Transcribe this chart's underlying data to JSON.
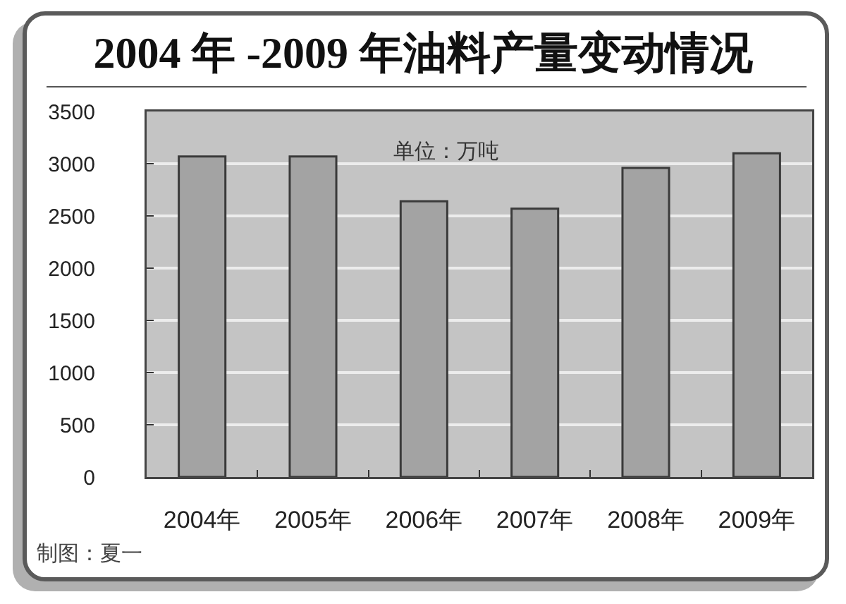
{
  "chart_data": {
    "type": "bar",
    "title": "2004 年 -2009 年油料产量变动情况",
    "categories": [
      "2004年",
      "2005年",
      "2006年",
      "2007年",
      "2008年",
      "2009年"
    ],
    "values": [
      3070,
      3070,
      2640,
      2570,
      2960,
      3100
    ],
    "color": "#a3a3a3",
    "ylim": [
      0,
      3500
    ],
    "yticks": [
      0,
      500,
      1000,
      1500,
      2000,
      2500,
      3000,
      3500
    ],
    "grid": "y",
    "annotations": [
      "单位：万吨",
      "制图：夏一"
    ]
  }
}
